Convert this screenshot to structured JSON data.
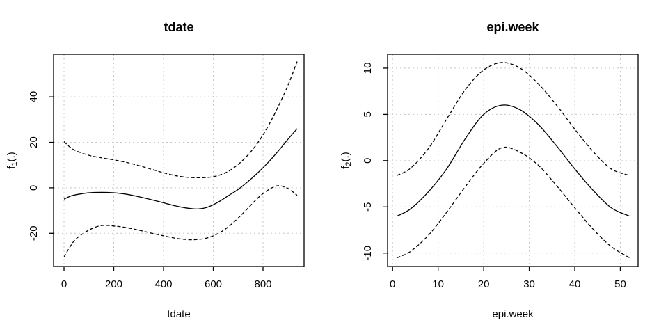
{
  "page": {
    "background": "#ffffff",
    "foreground": "#000000"
  },
  "chart_data": [
    {
      "type": "line",
      "title": "tdate",
      "xlabel": "tdate",
      "ylabel": "f1(.)",
      "ylabel_parts": {
        "prefix": "f",
        "sub": "1",
        "suffix": "(.)"
      },
      "xlim": [
        -42,
        965
      ],
      "ylim": [
        -34.6,
        58.7
      ],
      "xticks": [
        0,
        200,
        400,
        600,
        800
      ],
      "yticks": [
        -20,
        0,
        20,
        40
      ],
      "grid": true,
      "grid_color": "#c8c8c8",
      "line_color": "#000000",
      "legend": "none",
      "series": [
        {
          "name": "fit",
          "style": "solid",
          "x": [
            0,
            25,
            50,
            100,
            150,
            200,
            250,
            300,
            350,
            400,
            450,
            500,
            540,
            580,
            620,
            660,
            700,
            740,
            780,
            820,
            860,
            900,
            937
          ],
          "y": [
            -5.0,
            -3.7,
            -3.0,
            -2.2,
            -2.0,
            -2.2,
            -2.8,
            -3.9,
            -5.2,
            -6.6,
            -8.0,
            -9.0,
            -9.3,
            -8.4,
            -6.3,
            -3.5,
            -0.7,
            2.8,
            6.7,
            11.1,
            16.0,
            21.3,
            26.0
          ]
        },
        {
          "name": "upper-ci",
          "style": "dashed",
          "x": [
            0,
            25,
            50,
            100,
            150,
            200,
            250,
            300,
            350,
            400,
            450,
            500,
            540,
            580,
            620,
            660,
            700,
            740,
            780,
            820,
            860,
            900,
            937
          ],
          "y": [
            20.3,
            17.8,
            16.2,
            14.3,
            13.2,
            12.3,
            11.2,
            9.8,
            8.2,
            6.6,
            5.3,
            4.6,
            4.45,
            4.6,
            5.4,
            7.2,
            10.3,
            14.5,
            20.0,
            27.0,
            35.5,
            45.0,
            55.5
          ]
        },
        {
          "name": "lower-ci",
          "style": "dashed",
          "x": [
            0,
            25,
            50,
            100,
            150,
            200,
            250,
            300,
            350,
            400,
            450,
            500,
            540,
            580,
            620,
            660,
            700,
            740,
            780,
            820,
            860,
            900,
            937
          ],
          "y": [
            -30.5,
            -25.8,
            -22.3,
            -18.6,
            -16.6,
            -16.8,
            -17.5,
            -18.6,
            -19.9,
            -21.1,
            -22.2,
            -22.8,
            -22.7,
            -21.9,
            -20.1,
            -17.2,
            -13.3,
            -8.9,
            -4.4,
            -1.0,
            0.9,
            -0.3,
            -3.3
          ]
        }
      ]
    },
    {
      "type": "line",
      "title": "epi.week",
      "xlabel": "epi.week",
      "ylabel": "f2(.)",
      "ylabel_parts": {
        "prefix": "f",
        "sub": "2",
        "suffix": "(.)"
      },
      "xlim": [
        -1.1,
        53.9
      ],
      "ylim": [
        -11.45,
        11.5
      ],
      "xticks": [
        0,
        10,
        20,
        30,
        40,
        50
      ],
      "yticks": [
        -10,
        -5,
        0,
        5,
        10
      ],
      "grid": true,
      "grid_color": "#c8c8c8",
      "line_color": "#000000",
      "legend": "none",
      "series": [
        {
          "name": "fit",
          "style": "solid",
          "x": [
            1,
            4,
            8,
            12,
            16,
            20,
            24,
            28,
            32,
            36,
            40,
            44,
            48,
            52
          ],
          "y": [
            -6.0,
            -5.2,
            -3.3,
            -0.8,
            2.4,
            5.0,
            6.0,
            5.5,
            3.9,
            1.6,
            -0.9,
            -3.2,
            -5.1,
            -6.0
          ]
        },
        {
          "name": "upper-ci",
          "style": "dashed",
          "x": [
            1,
            4,
            8,
            12,
            16,
            20,
            24,
            28,
            32,
            36,
            40,
            44,
            48,
            52
          ],
          "y": [
            -1.6,
            -0.8,
            1.4,
            4.6,
            7.7,
            9.8,
            10.6,
            10.0,
            8.3,
            6.0,
            3.4,
            1.0,
            -0.9,
            -1.6
          ]
        },
        {
          "name": "lower-ci",
          "style": "dashed",
          "x": [
            1,
            4,
            8,
            12,
            16,
            20,
            24,
            28,
            32,
            36,
            40,
            44,
            48,
            52
          ],
          "y": [
            -10.5,
            -9.8,
            -8.0,
            -5.5,
            -2.8,
            -0.3,
            1.4,
            0.9,
            -0.5,
            -2.7,
            -5.1,
            -7.4,
            -9.3,
            -10.5
          ]
        }
      ]
    }
  ]
}
